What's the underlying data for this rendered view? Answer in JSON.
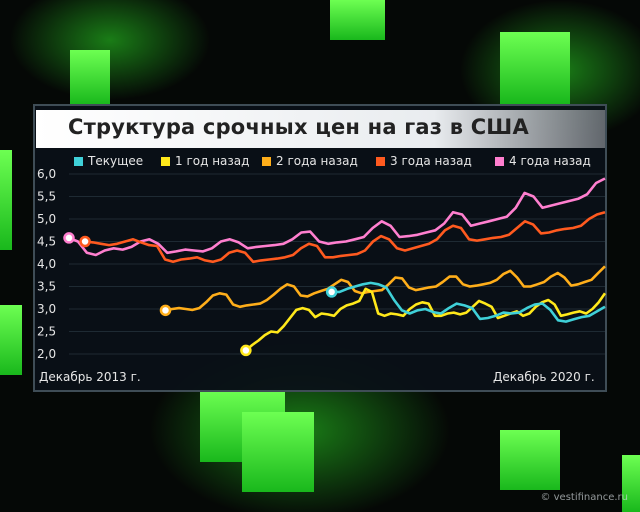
{
  "title": "Структура срочных цен на газ в США",
  "footer": {
    "left": "Декабрь 2013 г.",
    "right": "Декабрь 2020 г."
  },
  "watermark": "© vestifinance.ru",
  "colors": {
    "background_cubes": "#39ff2f",
    "title_bar": "#ffffff",
    "panel": "#0a1018"
  },
  "chart_data": {
    "type": "line",
    "title": "Структура срочных цен на газ в США",
    "ylim": [
      2.0,
      6.0
    ],
    "yticks": [
      "6,0",
      "5,5",
      "5,0",
      "4,5",
      "4,0",
      "3,5",
      "3,0",
      "2,5",
      "2,0"
    ],
    "x_start": "Декабрь 2013 г.",
    "x_end": "Декабрь 2020 г.",
    "grid": true,
    "legend": "top",
    "series": [
      {
        "name": "Текущее",
        "color": "#3fd0d8",
        "x_start": 0.49,
        "values": [
          3.38,
          3.38,
          3.45,
          3.5,
          3.55,
          3.58,
          3.55,
          3.48,
          3.2,
          2.97,
          2.9,
          2.97,
          3.0,
          2.93,
          2.9,
          3.02,
          3.12,
          3.08,
          3.02,
          2.78,
          2.8,
          2.85,
          2.92,
          2.9,
          2.92,
          3.02,
          3.1,
          3.12,
          2.98,
          2.75,
          2.72,
          2.77,
          2.82,
          2.85,
          2.95,
          3.05
        ]
      },
      {
        "name": "1 год назад",
        "color": "#ffe81a",
        "x_start": 0.33,
        "values": [
          2.08,
          2.2,
          2.3,
          2.42,
          2.5,
          2.48,
          2.62,
          2.8,
          2.98,
          3.02,
          2.98,
          2.82,
          2.9,
          2.88,
          2.85,
          3.0,
          3.08,
          3.12,
          3.18,
          3.45,
          3.38,
          2.9,
          2.85,
          2.9,
          2.88,
          2.85,
          3.0,
          3.1,
          3.15,
          3.12,
          2.85,
          2.85,
          2.9,
          2.92,
          2.88,
          2.92,
          3.05,
          3.18,
          3.12,
          3.05,
          2.8,
          2.85,
          2.9,
          2.95,
          2.85,
          2.9,
          3.05,
          3.15,
          3.2,
          3.1,
          2.85,
          2.88,
          2.92,
          2.95,
          2.9,
          3.0,
          3.15,
          3.35
        ]
      },
      {
        "name": "2 года назад",
        "color": "#ffae1a",
        "x_start": 0.18,
        "values": [
          2.97,
          3.0,
          3.02,
          3.0,
          2.98,
          3.02,
          3.15,
          3.3,
          3.35,
          3.32,
          3.1,
          3.05,
          3.08,
          3.1,
          3.12,
          3.2,
          3.32,
          3.45,
          3.55,
          3.5,
          3.3,
          3.28,
          3.35,
          3.4,
          3.45,
          3.55,
          3.65,
          3.6,
          3.4,
          3.35,
          3.38,
          3.4,
          3.42,
          3.55,
          3.7,
          3.68,
          3.48,
          3.42,
          3.45,
          3.48,
          3.5,
          3.6,
          3.72,
          3.72,
          3.55,
          3.5,
          3.52,
          3.55,
          3.58,
          3.65,
          3.78,
          3.85,
          3.7,
          3.5,
          3.5,
          3.55,
          3.6,
          3.72,
          3.8,
          3.7,
          3.52,
          3.55,
          3.6,
          3.65,
          3.8,
          3.95
        ]
      },
      {
        "name": "3 года назад",
        "color": "#ff5a1f",
        "x_start": 0.03,
        "values": [
          4.5,
          4.48,
          4.45,
          4.42,
          4.45,
          4.5,
          4.55,
          4.48,
          4.42,
          4.4,
          4.1,
          4.05,
          4.1,
          4.12,
          4.15,
          4.08,
          4.05,
          4.1,
          4.25,
          4.3,
          4.25,
          4.05,
          4.08,
          4.1,
          4.12,
          4.15,
          4.2,
          4.35,
          4.45,
          4.4,
          4.15,
          4.15,
          4.18,
          4.2,
          4.22,
          4.3,
          4.5,
          4.62,
          4.55,
          4.35,
          4.3,
          4.35,
          4.4,
          4.45,
          4.55,
          4.75,
          4.85,
          4.8,
          4.55,
          4.52,
          4.55,
          4.58,
          4.6,
          4.65,
          4.8,
          4.95,
          4.88,
          4.68,
          4.7,
          4.75,
          4.78,
          4.8,
          4.85,
          5.0,
          5.1,
          5.15
        ]
      },
      {
        "name": "4 года назад",
        "color": "#ff7fcf",
        "x_start": 0.0,
        "values": [
          4.58,
          4.5,
          4.25,
          4.2,
          4.3,
          4.35,
          4.32,
          4.38,
          4.5,
          4.55,
          4.45,
          4.25,
          4.28,
          4.32,
          4.3,
          4.28,
          4.35,
          4.5,
          4.55,
          4.48,
          4.35,
          4.38,
          4.4,
          4.42,
          4.45,
          4.55,
          4.7,
          4.72,
          4.5,
          4.45,
          4.48,
          4.5,
          4.55,
          4.6,
          4.8,
          4.95,
          4.85,
          4.6,
          4.62,
          4.65,
          4.7,
          4.75,
          4.9,
          5.15,
          5.1,
          4.85,
          4.9,
          4.95,
          5.0,
          5.05,
          5.25,
          5.58,
          5.5,
          5.25,
          5.3,
          5.35,
          5.4,
          5.45,
          5.55,
          5.8,
          5.9
        ]
      }
    ]
  }
}
